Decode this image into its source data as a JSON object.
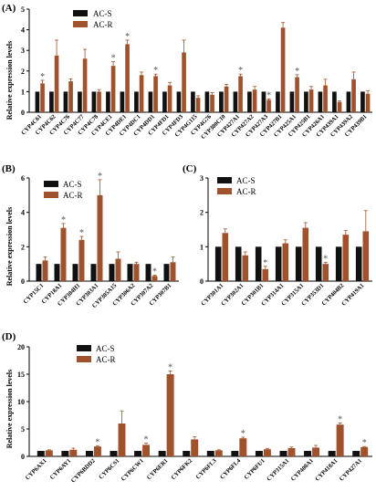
{
  "legend": {
    "s": "AC-S",
    "r": "AC-R"
  },
  "colors": {
    "s": "#111111",
    "r": "#a0522d",
    "label_pink": "#e06090"
  },
  "chart_data": [
    {
      "panel": "(A)",
      "type": "bar",
      "ylabel": "Relative expression levels",
      "ylim": [
        0,
        5
      ],
      "yticks": [
        0,
        1,
        2,
        3,
        4,
        5
      ],
      "categories": [
        "CYP4C61",
        "CYP4C62",
        "CYP4C76",
        "CYP4C77",
        "CYP4C78",
        "CYP4CE1",
        "CYP4DE1",
        "CYP4DC1",
        "CYP4DD1",
        "CYP4FD1",
        "CYP4FD3",
        "CYP4G115",
        "CYP4G76",
        "CYP380C10",
        "CYP427A1",
        "CYP427A2",
        "CYP427A3",
        "CYP427B1",
        "CYP425A1",
        "CYP425B1",
        "CYP426A1",
        "CYP439A1",
        "CYP439A2",
        "CYP439B1"
      ],
      "series": [
        {
          "name": "AC-S",
          "values": [
            1,
            1,
            1,
            1,
            1,
            1,
            1,
            1,
            1,
            1,
            1,
            1,
            1,
            1,
            1,
            1,
            1,
            1,
            1,
            1,
            1,
            1,
            1,
            1
          ]
        },
        {
          "name": "AC-R",
          "values": [
            1.4,
            2.75,
            1.5,
            2.6,
            1.0,
            2.25,
            3.3,
            1.8,
            1.75,
            1.3,
            2.9,
            0.7,
            0.85,
            1.25,
            1.75,
            1.1,
            0.6,
            4.1,
            1.7,
            1.1,
            1.3,
            0.5,
            1.6,
            0.9
          ]
        }
      ],
      "errors_r": [
        0.15,
        0.75,
        0.12,
        0.45,
        0.1,
        0.2,
        0.2,
        0.15,
        0.1,
        0.15,
        0.6,
        0.1,
        0.1,
        0.1,
        0.1,
        0.15,
        0.05,
        0.25,
        0.12,
        0.15,
        0.3,
        0.05,
        0.35,
        0.15
      ],
      "significant": [
        0,
        5,
        6,
        8,
        14,
        16,
        18
      ]
    },
    {
      "panel": "(B)",
      "type": "bar",
      "ylabel": "Relative expression levels",
      "ylim": [
        0,
        6
      ],
      "yticks": [
        0,
        2,
        4,
        6
      ],
      "categories": [
        "CYP15C1",
        "CYP18A1",
        "CYP304H1",
        "CYP303A1",
        "CYP305A15",
        "CYP306A2",
        "CYP307A2",
        "CYP307B1"
      ],
      "series": [
        {
          "name": "AC-S",
          "values": [
            1,
            1,
            1,
            1,
            1,
            1,
            1,
            1
          ]
        },
        {
          "name": "AC-R",
          "values": [
            1.2,
            3.1,
            2.4,
            5.0,
            1.3,
            1.0,
            0.3,
            1.1
          ]
        }
      ],
      "errors_r": [
        0.2,
        0.25,
        0.2,
        0.9,
        0.4,
        0.1,
        0.05,
        0.3
      ],
      "significant": [
        1,
        2,
        3,
        6
      ]
    },
    {
      "panel": "(C)",
      "type": "bar",
      "ylabel": "",
      "ylim": [
        0,
        3
      ],
      "yticks": [
        0,
        1,
        2,
        3
      ],
      "categories": [
        "CYP301A1",
        "CYP302A1",
        "CYP301B1",
        "CYP314A1",
        "CYP315A1",
        "CYP353D1",
        "CYP404B2",
        "CYP419A1"
      ],
      "series": [
        {
          "name": "AC-S",
          "values": [
            1,
            1,
            1,
            1,
            1,
            1,
            1,
            1
          ]
        },
        {
          "name": "AC-R",
          "values": [
            1.4,
            0.75,
            0.35,
            1.1,
            1.55,
            0.5,
            1.35,
            1.45
          ]
        }
      ],
      "errors_r": [
        0.12,
        0.1,
        0.08,
        0.1,
        0.15,
        0.05,
        0.12,
        0.6
      ],
      "significant": [
        2,
        5
      ]
    },
    {
      "panel": "(D)",
      "type": "bar",
      "ylabel": "Relative expression levels",
      "ylim": [
        0,
        20
      ],
      "yticks": [
        0,
        5,
        10,
        15,
        20
      ],
      "categories": [
        "CYP6AX1",
        "CYP6AY1",
        "CYP6BDD2",
        "CYP6CS1",
        "CYP6CW1",
        "CYP6ER1",
        "CYP6FK2",
        "CYP6FL3",
        "CYP6FL4",
        "CYP6FU1",
        "CYP315A1",
        "CYP408A1",
        "CYP418A1",
        "CYP427A1"
      ],
      "series": [
        {
          "name": "AC-S",
          "values": [
            1,
            1,
            1,
            1,
            1,
            1,
            1,
            1,
            1,
            1,
            1,
            1,
            1,
            1
          ]
        },
        {
          "name": "AC-R",
          "values": [
            1.1,
            1.2,
            1.8,
            6.0,
            2.1,
            15.0,
            3.1,
            1.1,
            3.3,
            1.3,
            1.5,
            1.6,
            5.8,
            1.7
          ]
        }
      ],
      "errors_r": [
        0.1,
        0.3,
        0.15,
        2.3,
        0.3,
        0.6,
        0.5,
        0.1,
        0.2,
        0.15,
        0.2,
        0.4,
        0.3,
        0.1
      ],
      "significant": [
        2,
        4,
        5,
        8,
        12,
        13
      ]
    }
  ]
}
